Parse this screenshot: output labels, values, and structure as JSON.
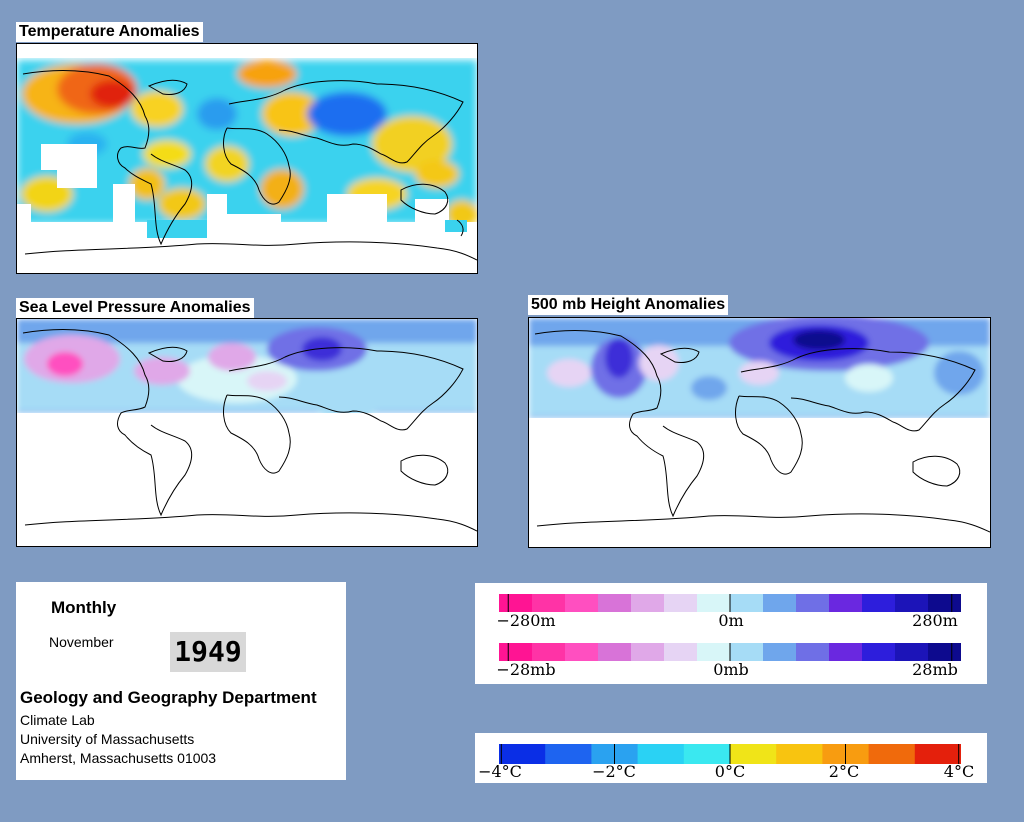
{
  "maps": {
    "temperature": {
      "title": "Temperature Anomalies"
    },
    "slp": {
      "title": "Sea Level Pressure Anomalies"
    },
    "height500": {
      "title": "500 mb Height Anomalies"
    }
  },
  "info": {
    "period": "Monthly",
    "month": "November",
    "year": "1949",
    "department": "Geology and Geography Department",
    "lines": [
      "Climate Lab",
      "University of Massachusetts",
      "Amherst, Massachusetts 01003"
    ]
  },
  "legends": {
    "height": {
      "labels": [
        "−280m",
        "0m",
        "280m"
      ]
    },
    "pressure": {
      "labels": [
        "−28mb",
        "0mb",
        "28mb"
      ]
    },
    "temperature": {
      "labels": [
        "−4°C",
        "−2°C",
        "0°C",
        "2°C",
        "4°C"
      ]
    }
  },
  "colors": {
    "background": "#7f9bc2",
    "anomaly_scale": [
      "#ff1493",
      "#ff33a6",
      "#ff4fc0",
      "#d873d8",
      "#e0a8e8",
      "#e6d4f4",
      "#d8f6f8",
      "#a6dcf6",
      "#6fa6ec",
      "#6f6fe6",
      "#6a28e0",
      "#2d1edc",
      "#1c14b8",
      "#0d0a8e"
    ],
    "temperature_scale": [
      "#0a2ee6",
      "#1e64f0",
      "#2aa2f0",
      "#2ad2f4",
      "#3ae8f0",
      "#f0e418",
      "#f8c410",
      "#f89c10",
      "#f06a0c",
      "#e4200c"
    ]
  }
}
